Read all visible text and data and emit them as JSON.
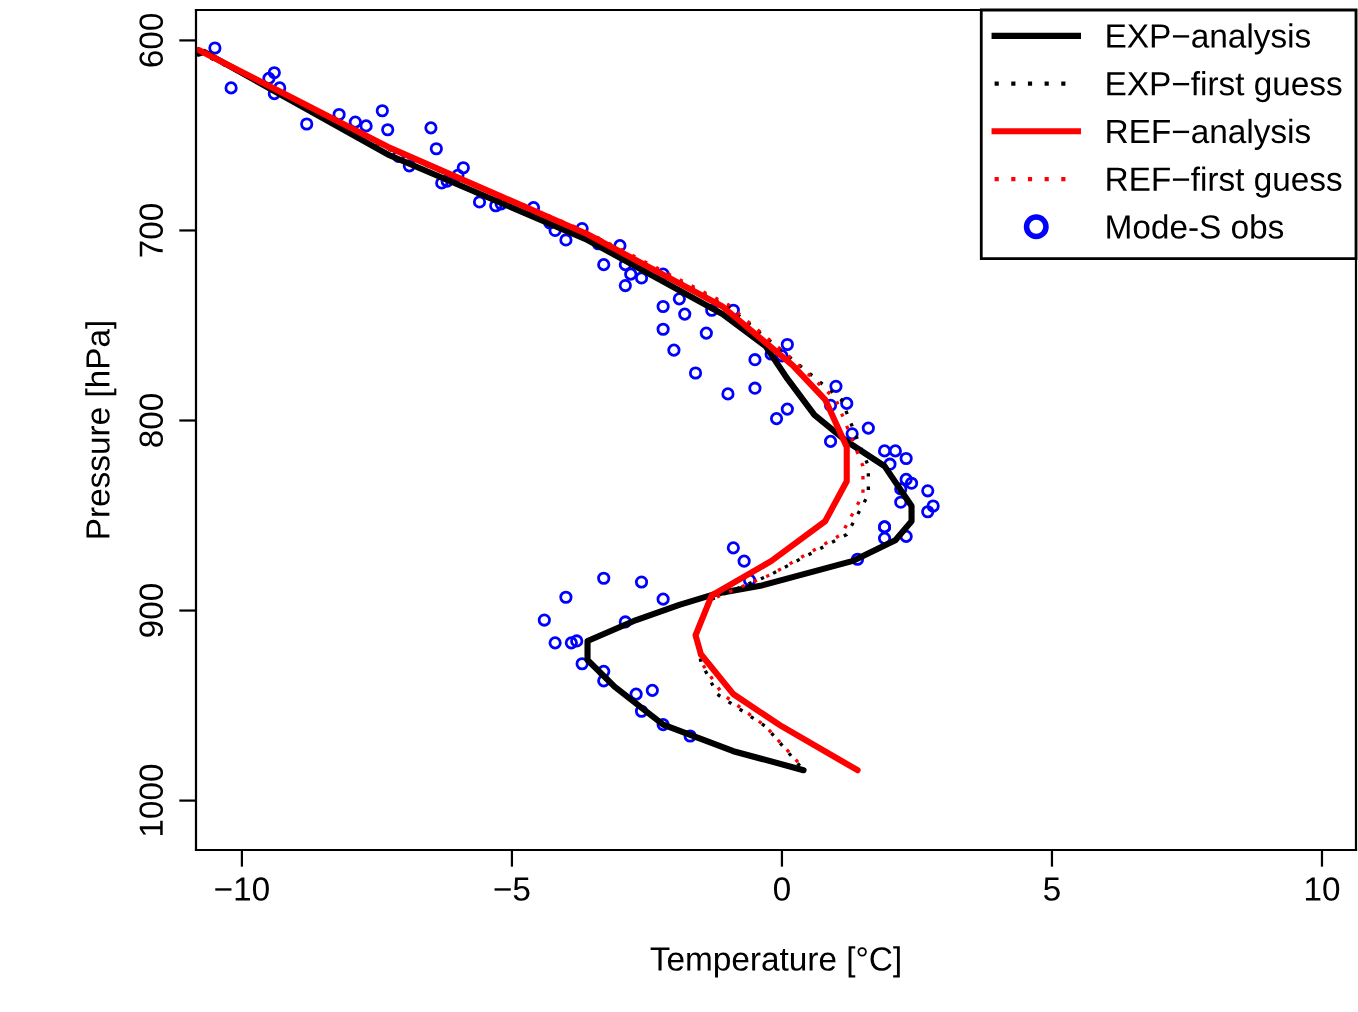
{
  "chart_data": {
    "type": "line",
    "xlabel": "Temperature [°C]",
    "ylabel": "Pressure [hPa]",
    "xlim": [
      -10.85,
      10.63
    ],
    "ylim": [
      1026,
      584
    ],
    "xticks": [
      {
        "value": -10,
        "label": "−10"
      },
      {
        "value": -5,
        "label": "−5"
      },
      0,
      5,
      10
    ],
    "yticks": [
      600,
      700,
      800,
      900,
      1000
    ],
    "grid": false,
    "legend": "top right",
    "series": [
      {
        "name": "EXP−analysis",
        "line_style": "solid",
        "color": "#000000",
        "x": [
          -10.8,
          -10.7,
          -7.3,
          -3.6,
          -1.1,
          -0.3,
          0.1,
          0.6,
          1.2,
          1.9,
          2.4,
          2.4,
          2.1,
          1.3,
          -0.4,
          -1.2,
          -1.9,
          -2.7,
          -3.6,
          -3.6,
          -3.1,
          -2.2,
          -0.9,
          0.4
        ],
        "values": [
          607,
          606,
          660,
          705,
          744,
          761,
          778,
          797,
          811,
          824,
          845,
          853,
          863,
          874,
          887,
          891,
          897,
          905,
          916,
          926,
          940,
          960,
          974,
          984
        ]
      },
      {
        "name": "EXP−first guess",
        "line_style": "dotted",
        "color": "#000000",
        "x": [
          -10.8,
          -7.3,
          -3.6,
          -1.0,
          0.2,
          1.1,
          1.6,
          1.6,
          1.2,
          -0.2,
          -1.3,
          -1.6,
          -1.5,
          -1.2,
          -0.3,
          0.4
        ],
        "values": [
          606,
          657,
          702,
          740,
          768,
          789,
          824,
          839,
          860,
          881,
          894,
          912,
          927,
          944,
          961,
          984
        ]
      },
      {
        "name": "REF−analysis",
        "line_style": "solid",
        "color": "#ff0000",
        "x": [
          -10.8,
          -7.3,
          -3.6,
          -1.1,
          0.2,
          0.8,
          1.2,
          1.2,
          0.8,
          -0.2,
          -1.3,
          -1.6,
          -1.5,
          -0.9,
          0.0,
          1.4
        ],
        "values": [
          605,
          656,
          702,
          740,
          771,
          789,
          814,
          832,
          853,
          874,
          892,
          913,
          923,
          944,
          961,
          984
        ]
      },
      {
        "name": "REF−first guess",
        "line_style": "dotted",
        "color": "#ff0000",
        "x": [
          -10.8,
          -7.3,
          -3.6,
          -1.0,
          0.2,
          1.0,
          1.5,
          1.5,
          1.1,
          -0.2,
          -1.3,
          -1.6,
          -1.5,
          -1.1,
          -0.3,
          0.4
        ],
        "values": [
          605,
          656,
          701,
          739,
          768,
          789,
          824,
          839,
          860,
          881,
          894,
          912,
          927,
          944,
          961,
          983
        ]
      },
      {
        "name": "Mode-S obs",
        "type": "scatter",
        "marker": "circle",
        "color": "#0000ff",
        "x": [
          -10.5,
          -10.2,
          -9.4,
          -9.5,
          -9.4,
          -9.3,
          -8.8,
          -8.2,
          -7.9,
          -7.7,
          -7.4,
          -7.3,
          -7.1,
          -6.9,
          -6.5,
          -6.4,
          -6.3,
          -6.2,
          -6.0,
          -5.9,
          -5.6,
          -5.3,
          -5.2,
          -4.6,
          -4.3,
          -4.2,
          -4.0,
          -3.7,
          -3.4,
          -3.3,
          -3.0,
          -2.9,
          -2.9,
          -2.8,
          -2.6,
          -2.2,
          -2.2,
          -2.2,
          -2.0,
          -1.9,
          -1.8,
          -1.6,
          -1.4,
          -1.3,
          -1.0,
          -0.9,
          -0.5,
          -0.5,
          -0.1,
          -0.2,
          0.1,
          0.1,
          0.0,
          1.0,
          1.2,
          0.9,
          0.9,
          1.3,
          1.6,
          1.9,
          2.1,
          2.0,
          2.3,
          2.3,
          2.4,
          2.2,
          2.7,
          2.2,
          2.8,
          2.7,
          1.9,
          1.9,
          2.3,
          1.9,
          1.4,
          -0.9,
          -0.7,
          -0.6,
          -3.3,
          -2.6,
          -2.2,
          -4.0,
          -4.4,
          -4.2,
          -3.9,
          -3.8,
          -2.9,
          -3.7,
          -3.3,
          -3.3,
          -2.7,
          -2.4,
          -2.6,
          -2.2,
          -1.7
        ],
        "values": [
          604,
          625,
          617,
          620,
          628,
          625,
          644,
          639,
          643,
          645,
          637,
          647,
          661,
          666,
          646,
          657,
          675,
          674,
          671,
          667,
          685,
          687,
          686,
          688,
          696,
          700,
          705,
          699,
          707,
          718,
          708,
          729,
          718,
          723,
          725,
          723,
          740,
          752,
          763,
          736,
          744,
          775,
          754,
          742,
          786,
          742,
          768,
          783,
          799,
          765,
          760,
          794,
          766,
          782,
          791,
          792,
          811,
          807,
          804,
          816,
          816,
          823,
          820,
          831,
          833,
          836,
          837,
          843,
          845,
          848,
          856,
          856,
          861,
          862,
          873,
          867,
          874,
          884,
          883,
          885,
          894,
          893,
          905,
          917,
          917,
          916,
          906,
          928,
          932,
          937,
          944,
          942,
          953,
          960,
          966
        ]
      }
    ]
  }
}
